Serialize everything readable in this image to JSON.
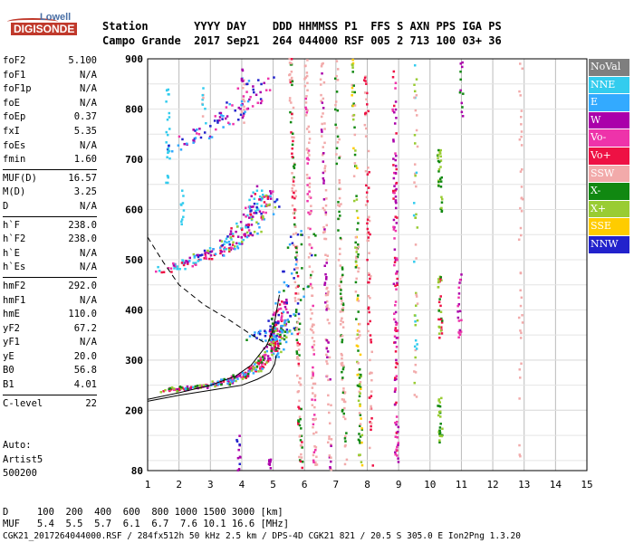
{
  "logo": {
    "top": "Lowell",
    "main": "DIGISONDE"
  },
  "header": {
    "line1": "Station       YYYY DAY    DDD HHMMSS P1  FFS S AXN PPS IGA PS",
    "line2": "Campo Grande  2017 Sep21  264 044000 RSF 005 2 713 100 03+ 36"
  },
  "params": {
    "group1": [
      {
        "k": "foF2",
        "v": "5.100"
      },
      {
        "k": "foF1",
        "v": "N/A"
      },
      {
        "k": "foF1p",
        "v": "N/A"
      },
      {
        "k": "foE",
        "v": "N/A"
      },
      {
        "k": "foEp",
        "v": "0.37"
      },
      {
        "k": "fxI",
        "v": "5.35"
      },
      {
        "k": "foEs",
        "v": "N/A"
      },
      {
        "k": "fmin",
        "v": "1.60"
      }
    ],
    "group2": [
      {
        "k": "MUF(D)",
        "v": "16.57"
      },
      {
        "k": "M(D)",
        "v": "3.25"
      },
      {
        "k": "D",
        "v": "N/A"
      }
    ],
    "group3": [
      {
        "k": "h`F",
        "v": "238.0"
      },
      {
        "k": "h`F2",
        "v": "238.0"
      },
      {
        "k": "h`E",
        "v": "N/A"
      },
      {
        "k": "h`Es",
        "v": "N/A"
      }
    ],
    "group4": [
      {
        "k": "hmF2",
        "v": "292.0"
      },
      {
        "k": "hmF1",
        "v": "N/A"
      },
      {
        "k": "hmE",
        "v": "110.0"
      },
      {
        "k": "yF2",
        "v": "67.2"
      },
      {
        "k": "yF1",
        "v": "N/A"
      },
      {
        "k": "yE",
        "v": "20.0"
      },
      {
        "k": "B0",
        "v": "56.8"
      },
      {
        "k": "B1",
        "v": "4.01"
      }
    ],
    "group5": [
      {
        "k": "C-level",
        "v": "22"
      }
    ]
  },
  "auto": {
    "l1": "Auto:",
    "l2": "Artist5",
    "l3": "500200"
  },
  "legend": [
    {
      "label": "NoVal",
      "color": "#7f7f7f"
    },
    {
      "label": "NNE",
      "color": "#33ccee"
    },
    {
      "label": "E",
      "color": "#33aaff"
    },
    {
      "label": "W",
      "color": "#aa00aa"
    },
    {
      "label": "Vo-",
      "color": "#ee33aa"
    },
    {
      "label": "Vo+",
      "color": "#ee1144"
    },
    {
      "label": "SSW",
      "color": "#f2aaaa"
    },
    {
      "label": "X-",
      "color": "#118811"
    },
    {
      "label": "X+",
      "color": "#99cc33"
    },
    {
      "label": "SSE",
      "color": "#ffcc00"
    },
    {
      "label": "NNW",
      "color": "#2222cc"
    }
  ],
  "bottom": {
    "row1": "D     100  200  400  600  800 1000 1500 3000 [km]",
    "row2": "MUF   5.4  5.5  5.7  6.1  6.7  7.6 10.1 16.6 [MHz]",
    "footer": "CGK21_2017264044000.RSF / 284fx512h 50 kHz 2.5 km / DPS-4D CGK21 821 / 20.5 S 305.0 E Ion2Png 1.3.20"
  },
  "chart_data": {
    "type": "scatter",
    "xlim": [
      1,
      15
    ],
    "ylim": [
      80,
      900
    ],
    "xticks": [
      1,
      2,
      3,
      4,
      5,
      6,
      7,
      8,
      9,
      10,
      11,
      12,
      13,
      14,
      15
    ],
    "yticks": [
      80,
      200,
      300,
      400,
      500,
      600,
      700,
      800,
      900
    ],
    "grid": true,
    "legend_placement": "right",
    "traces": {
      "o_lower": [
        [
          1.5,
          240
        ],
        [
          2.2,
          243
        ],
        [
          3.0,
          250
        ],
        [
          3.6,
          258
        ],
        [
          4.1,
          270
        ],
        [
          4.5,
          285
        ],
        [
          4.8,
          305
        ],
        [
          5.0,
          330
        ],
        [
          5.15,
          360
        ],
        [
          5.25,
          390
        ],
        [
          5.35,
          420
        ]
      ],
      "o_upper": [
        [
          1.5,
          478
        ],
        [
          2.2,
          490
        ],
        [
          3.0,
          510
        ],
        [
          3.6,
          530
        ],
        [
          4.0,
          555
        ],
        [
          4.4,
          590
        ],
        [
          4.6,
          615
        ],
        [
          4.75,
          645
        ]
      ],
      "o_top": [
        [
          1.7,
          720
        ],
        [
          2.5,
          745
        ],
        [
          3.3,
          775
        ],
        [
          3.9,
          800
        ],
        [
          4.3,
          830
        ],
        [
          4.6,
          860
        ]
      ],
      "x_lower": [
        [
          1.6,
          240
        ],
        [
          2.4,
          244
        ],
        [
          3.2,
          252
        ],
        [
          3.8,
          262
        ],
        [
          4.3,
          276
        ],
        [
          4.7,
          296
        ],
        [
          5.0,
          320
        ],
        [
          5.3,
          350
        ],
        [
          5.45,
          375
        ]
      ],
      "x_upper": [
        [
          2.6,
          500
        ],
        [
          3.2,
          515
        ],
        [
          3.8,
          535
        ],
        [
          4.3,
          565
        ],
        [
          4.7,
          600
        ],
        [
          4.95,
          640
        ]
      ],
      "nnw_cluster": [
        [
          4.6,
          340
        ],
        [
          4.8,
          345
        ],
        [
          5.0,
          355
        ],
        [
          5.2,
          360
        ],
        [
          5.4,
          380
        ],
        [
          5.5,
          410
        ],
        [
          5.7,
          450
        ],
        [
          5.9,
          510
        ],
        [
          6.0,
          560
        ]
      ]
    },
    "true_height_profile": [
      [
        1.0,
        218
      ],
      [
        2.0,
        230
      ],
      [
        3.0,
        240
      ],
      [
        4.0,
        250
      ],
      [
        4.5,
        262
      ],
      [
        4.9,
        275
      ],
      [
        5.05,
        292
      ],
      [
        5.1,
        310
      ]
    ],
    "virtual_model": [
      [
        1.0,
        222
      ],
      [
        2.0,
        235
      ],
      [
        3.0,
        250
      ],
      [
        3.8,
        268
      ],
      [
        4.3,
        290
      ],
      [
        4.8,
        330
      ],
      [
        5.0,
        360
      ],
      [
        5.2,
        430
      ]
    ],
    "extraordinary_model": [
      [
        1.0,
        545
      ],
      [
        1.5,
        495
      ],
      [
        2.0,
        450
      ],
      [
        2.8,
        410
      ],
      [
        3.6,
        380
      ],
      [
        4.2,
        355
      ],
      [
        4.8,
        332
      ],
      [
        5.3,
        320
      ]
    ]
  }
}
